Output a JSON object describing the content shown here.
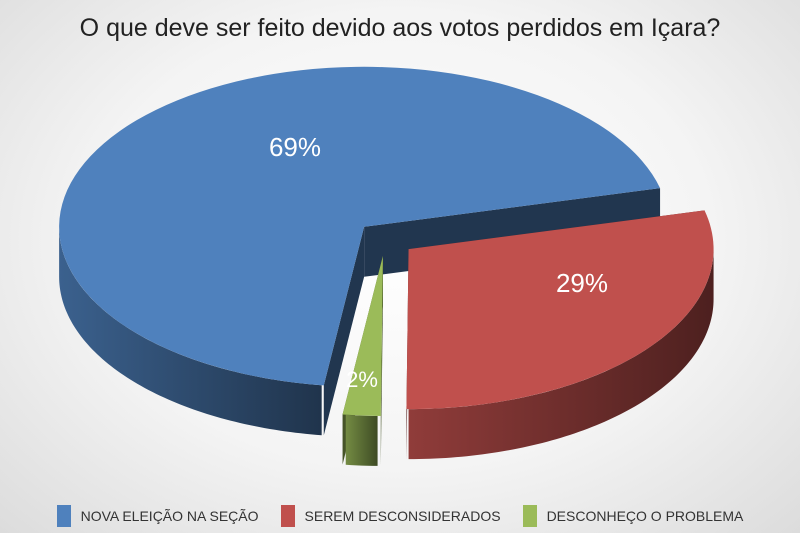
{
  "chart_data": {
    "type": "pie",
    "title": "O que deve ser feito devido aos votos perdidos em Içara?",
    "categories": [
      "NOVA ELEIÇÃO NA SEÇÃO",
      "SEREM DESCONSIDERADOS",
      "DESCONHEÇO O PROBLEMA"
    ],
    "values": [
      69,
      29,
      2
    ],
    "labels": [
      "69%",
      "29%",
      "2%"
    ],
    "colors": [
      "#4f81bd",
      "#c0504d",
      "#9bbb59"
    ],
    "legend_position": "bottom"
  }
}
